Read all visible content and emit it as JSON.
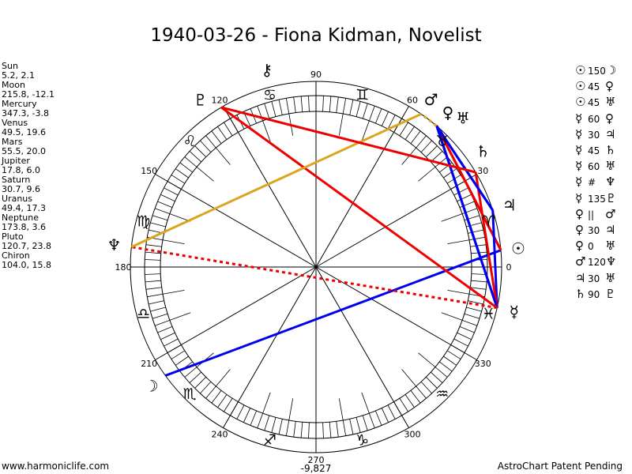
{
  "title": "1940-03-26 - Fiona Kidman, Novelist",
  "planets": [
    {
      "name": "Sun",
      "glyph": "☉",
      "lon": 5.2,
      "decl": 2.1,
      "pos": "5.2, 2.1"
    },
    {
      "name": "Moon",
      "glyph": "☽",
      "lon": 215.8,
      "decl": -12.1,
      "pos": "215.8, -12.1"
    },
    {
      "name": "Mercury",
      "glyph": "☿",
      "lon": 347.3,
      "decl": -3.8,
      "pos": "347.3, -3.8"
    },
    {
      "name": "Venus",
      "glyph": "♀",
      "lon": 49.5,
      "decl": 19.6,
      "pos": "49.5, 19.6"
    },
    {
      "name": "Mars",
      "glyph": "♂",
      "lon": 55.5,
      "decl": 20.0,
      "pos": "55.5, 20.0"
    },
    {
      "name": "Jupiter",
      "glyph": "♃",
      "lon": 17.8,
      "decl": 6.0,
      "pos": "17.8, 6.0"
    },
    {
      "name": "Saturn",
      "glyph": "♄",
      "lon": 30.7,
      "decl": 9.6,
      "pos": "30.7, 9.6"
    },
    {
      "name": "Uranus",
      "glyph": "♅",
      "lon": 49.4,
      "decl": 17.3,
      "pos": "49.4, 17.3"
    },
    {
      "name": "Neptune",
      "glyph": "♆",
      "lon": 173.8,
      "decl": 3.6,
      "pos": "173.8, 3.6"
    },
    {
      "name": "Pluto",
      "glyph": "♇",
      "lon": 120.7,
      "decl": 23.8,
      "pos": "120.7, 23.8"
    },
    {
      "name": "Chiron",
      "glyph": "⚷",
      "lon": 104.0,
      "decl": 15.8,
      "pos": "104.0, 15.8"
    }
  ],
  "aspects": [
    {
      "p1": "Sun",
      "aspect": "150",
      "p2": "Moon",
      "g1": "☉",
      "g2": "☽",
      "color": "#0000ee",
      "style": "solid"
    },
    {
      "p1": "Sun",
      "aspect": "45",
      "p2": "Venus",
      "g1": "☉",
      "g2": "♀",
      "color": "#ee0000",
      "style": "solid"
    },
    {
      "p1": "Sun",
      "aspect": "45",
      "p2": "Uranus",
      "g1": "☉",
      "g2": "♅",
      "color": "#ee0000",
      "style": "solid"
    },
    {
      "p1": "Mercury",
      "aspect": "60",
      "p2": "Venus",
      "g1": "☿",
      "g2": "♀",
      "color": "#0000ee",
      "style": "solid"
    },
    {
      "p1": "Mercury",
      "aspect": "30",
      "p2": "Jupiter",
      "g1": "☿",
      "g2": "♃",
      "color": "#0000ee",
      "style": "solid"
    },
    {
      "p1": "Mercury",
      "aspect": "45",
      "p2": "Saturn",
      "g1": "☿",
      "g2": "♄",
      "color": "#ee0000",
      "style": "solid"
    },
    {
      "p1": "Mercury",
      "aspect": "60",
      "p2": "Uranus",
      "g1": "☿",
      "g2": "♅",
      "color": "#0000ee",
      "style": "solid"
    },
    {
      "p1": "Mercury",
      "aspect": "#",
      "p2": "Neptune",
      "g1": "☿",
      "g2": "♆",
      "color": "#ee0000",
      "style": "dotted"
    },
    {
      "p1": "Mercury",
      "aspect": "135",
      "p2": "Pluto",
      "g1": "☿",
      "g2": "♇",
      "color": "#ee0000",
      "style": "solid"
    },
    {
      "p1": "Venus",
      "aspect": "||",
      "p2": "Mars",
      "g1": "♀",
      "g2": "♂",
      "color": "#daa520",
      "style": "dotted"
    },
    {
      "p1": "Venus",
      "aspect": "30",
      "p2": "Jupiter",
      "g1": "♀",
      "g2": "♃",
      "color": "#0000ee",
      "style": "solid"
    },
    {
      "p1": "Venus",
      "aspect": "0",
      "p2": "Uranus",
      "g1": "♀",
      "g2": "♅",
      "color": "#ee0000",
      "style": "solid"
    },
    {
      "p1": "Mars",
      "aspect": "120",
      "p2": "Neptune",
      "g1": "♂",
      "g2": "♆",
      "color": "#daa520",
      "style": "solid"
    },
    {
      "p1": "Jupiter",
      "aspect": "30",
      "p2": "Uranus",
      "g1": "♃",
      "g2": "♅",
      "color": "#0000ee",
      "style": "solid"
    },
    {
      "p1": "Saturn",
      "aspect": "90",
      "p2": "Pluto",
      "g1": "♄",
      "g2": "♇",
      "color": "#ee0000",
      "style": "solid"
    }
  ],
  "signs": [
    "♈",
    "♉",
    "♊",
    "♋",
    "♌",
    "♍",
    "♎",
    "♏",
    "♐",
    "♑",
    "♒",
    "♓"
  ],
  "degree_labels": [
    "0",
    "30",
    "60",
    "90",
    "120",
    "150",
    "180",
    "210",
    "240",
    "270",
    "300",
    "330"
  ],
  "score": "-9,827",
  "footer": {
    "site": "www.harmoniclife.com",
    "patent": "AstroChart Patent Pending"
  }
}
